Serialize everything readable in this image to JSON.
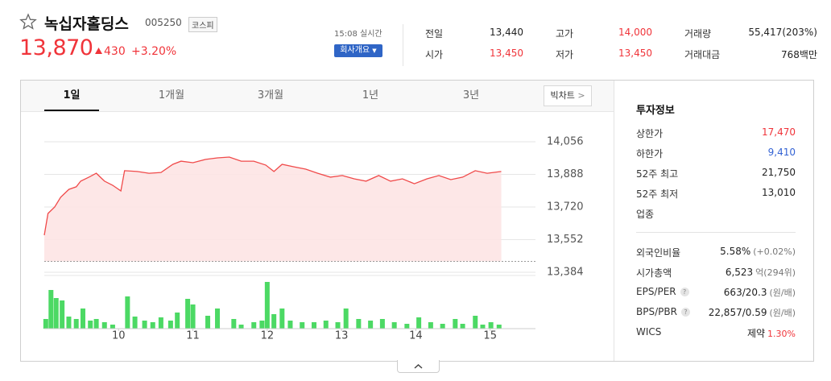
{
  "header": {
    "name": "녹십자홀딩스",
    "code": "005250",
    "market": "코스피",
    "price": "13,870",
    "change": "430",
    "change_pct": "+3.20%",
    "time": "15:08 실시간",
    "company_button": "회사개요"
  },
  "quote": [
    {
      "label": "전일",
      "value": "13,440",
      "color": "#222222"
    },
    {
      "label": "시가",
      "value": "13,450",
      "color": "#f0343a"
    },
    {
      "label": "고가",
      "value": "14,000",
      "color": "#f0343a"
    },
    {
      "label": "저가",
      "value": "13,450",
      "color": "#f0343a"
    },
    {
      "label": "거래량",
      "value": "55,417(203%)",
      "color": "#222222"
    },
    {
      "label": "거래대금",
      "value": "768백만",
      "color": "#222222"
    }
  ],
  "tabs": [
    "1일",
    "1개월",
    "3개월",
    "1년",
    "3년"
  ],
  "active_tab": 0,
  "big_chart": "빅차트",
  "invest": {
    "title": "투자정보",
    "help": "?",
    "groups": [
      [
        {
          "label": "상한가",
          "value": "17,470",
          "color": "#f0343a"
        },
        {
          "label": "하한가",
          "value": "9,410",
          "color": "#3463d4"
        },
        {
          "label": "52주 최고",
          "value": "21,750",
          "color": "#222222"
        },
        {
          "label": "52주 최저",
          "value": "13,010",
          "color": "#222222"
        },
        {
          "label": "업종"
        }
      ],
      [
        {
          "label": "외국인비율",
          "value": "5.58%",
          "sub": "(+0.02%)",
          "color": "#222222",
          "sub_color": "#777777"
        },
        {
          "label": "시가총액",
          "value": "6,523",
          "sub": "억(294위)",
          "color": "#222222",
          "sub_color": "#777777"
        },
        {
          "label": "EPS/PER",
          "help": true,
          "value": "663/20.3",
          "sub": "(원/배)",
          "color": "#222222",
          "sub_color": "#777777"
        },
        {
          "label": "BPS/PBR",
          "help": true,
          "value": "22,857/0.59",
          "sub": "(원/배)",
          "color": "#222222",
          "sub_color": "#777777"
        },
        {
          "label": "WICS",
          "value": "제약",
          "sub": "1.30%",
          "color": "#222222",
          "sub_color": "#f0343a"
        }
      ]
    ]
  },
  "chart_data": {
    "type": "line",
    "x": [
      9.0,
      9.05,
      9.14,
      9.22,
      9.33,
      9.43,
      9.49,
      9.6,
      9.7,
      9.81,
      9.92,
      10.03,
      10.08,
      10.25,
      10.41,
      10.57,
      10.73,
      10.84,
      11.0,
      11.17,
      11.33,
      11.49,
      11.65,
      11.82,
      11.98,
      12.09,
      12.2,
      12.36,
      12.52,
      12.68,
      12.85,
      13.01,
      13.17,
      13.33,
      13.5,
      13.66,
      13.82,
      13.98,
      14.15,
      14.31,
      14.47,
      14.63,
      14.8,
      14.96,
      15.15
    ],
    "values": [
      13575,
      13687,
      13720,
      13770,
      13811,
      13824,
      13853,
      13874,
      13894,
      13853,
      13832,
      13803,
      13907,
      13903,
      13894,
      13898,
      13940,
      13956,
      13948,
      13965,
      13973,
      13977,
      13956,
      13956,
      13936,
      13903,
      13940,
      13927,
      13915,
      13894,
      13874,
      13882,
      13865,
      13853,
      13882,
      13853,
      13865,
      13840,
      13865,
      13882,
      13861,
      13874,
      13907,
      13894,
      13903
    ],
    "color": "#f04a4a",
    "fill": "#fde3e3",
    "baseline": 13440,
    "xlim": [
      9,
      15.61
    ],
    "ylim": [
      13384,
      14056
    ],
    "xticks": [
      10,
      11,
      12,
      13,
      14,
      15
    ],
    "yticks": [
      {
        "value": 14056,
        "label": "14,056"
      },
      {
        "value": 13888,
        "label": "13,888"
      },
      {
        "value": 13720,
        "label": "13,720"
      },
      {
        "value": 13552,
        "label": "13,552"
      },
      {
        "value": 13384,
        "label": "13,384"
      }
    ],
    "grid": true,
    "volume": {
      "type": "bar",
      "color": "#4cd964",
      "ylim": [
        0,
        60
      ],
      "x": [
        9.02,
        9.09,
        9.16,
        9.24,
        9.33,
        9.43,
        9.52,
        9.62,
        9.7,
        9.81,
        9.92,
        10.12,
        10.22,
        10.35,
        10.46,
        10.57,
        10.7,
        10.79,
        10.93,
        11.0,
        11.2,
        11.33,
        11.55,
        11.65,
        11.82,
        11.93,
        12.0,
        12.09,
        12.2,
        12.31,
        12.47,
        12.63,
        12.79,
        12.95,
        13.06,
        13.23,
        13.39,
        13.55,
        13.71,
        13.88,
        14.04,
        14.2,
        14.36,
        14.53,
        14.63,
        14.8,
        14.9,
        15.01,
        15.12
      ],
      "values": [
        12,
        48,
        38,
        35,
        15,
        12,
        25,
        10,
        12,
        8,
        5,
        40,
        15,
        10,
        8,
        14,
        10,
        20,
        37,
        30,
        16,
        25,
        12,
        5,
        8,
        10,
        58,
        18,
        25,
        10,
        8,
        8,
        10,
        8,
        25,
        12,
        10,
        12,
        8,
        6,
        14,
        8,
        6,
        12,
        6,
        16,
        5,
        8,
        5
      ]
    }
  }
}
